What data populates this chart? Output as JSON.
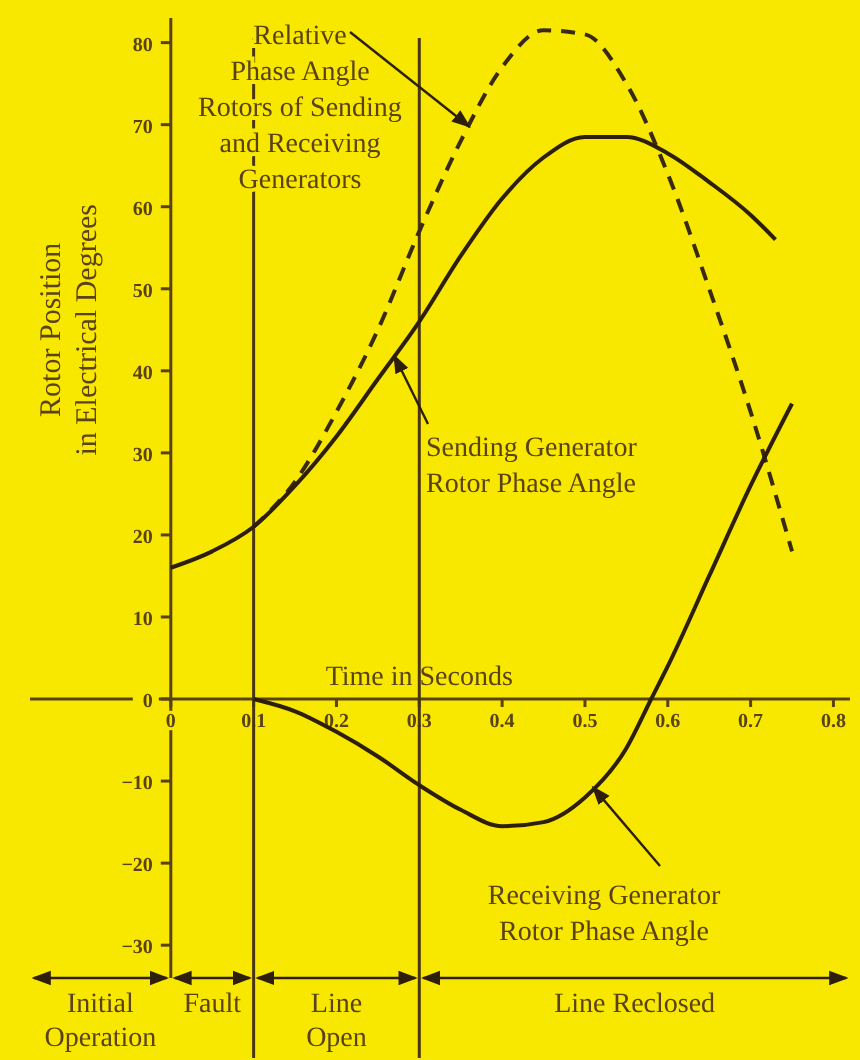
{
  "chart_data": {
    "type": "line",
    "ylabel": "Rotor Position in Electrical Degrees",
    "xlabel": "Time in Seconds",
    "xlim": [
      -0.17,
      0.82
    ],
    "ylim": [
      -34,
      83
    ],
    "xticks": [
      0,
      0.1,
      0.2,
      0.3,
      0.4,
      0.5,
      0.6,
      0.7,
      0.8
    ],
    "yticks": [
      -30,
      -20,
      -10,
      0,
      10,
      20,
      30,
      40,
      50,
      60,
      70,
      80
    ],
    "grid": false,
    "series": [
      {
        "name": "Relative Phase Angle Rotors of Sending and Receiving Generators",
        "color": "#3a2a12",
        "line_style": "dashed",
        "x": [
          0.1,
          0.15,
          0.2,
          0.25,
          0.3,
          0.35,
          0.4,
          0.45,
          0.5,
          0.55,
          0.6,
          0.65,
          0.7,
          0.75
        ],
        "values": [
          21,
          26.5,
          35,
          45,
          57,
          68,
          77,
          81.5,
          81,
          75,
          64,
          50,
          35,
          18
        ]
      },
      {
        "name": "Sending Generator Rotor Phase Angle",
        "color": "#2e1f0c",
        "line_style": "solid",
        "x": [
          0,
          0.05,
          0.1,
          0.15,
          0.2,
          0.25,
          0.3,
          0.35,
          0.4,
          0.45,
          0.5,
          0.55,
          0.6,
          0.65,
          0.7,
          0.73
        ],
        "values": [
          16,
          18,
          21,
          26,
          32,
          39,
          46,
          54,
          61,
          66,
          68.5,
          68.5,
          66.5,
          63,
          59,
          56
        ]
      },
      {
        "name": "Receiving Generator Rotor Phase Angle",
        "color": "#2e1f0c",
        "line_style": "solid",
        "x": [
          0.1,
          0.15,
          0.2,
          0.25,
          0.3,
          0.35,
          0.4,
          0.45,
          0.5,
          0.55,
          0.58,
          0.6,
          0.65,
          0.7,
          0.75
        ],
        "values": [
          0,
          -1.5,
          -4,
          -7,
          -10.5,
          -13.5,
          -15.5,
          -15,
          -12,
          -6,
          0,
          4,
          15,
          26,
          36
        ]
      }
    ],
    "ref_lines": [
      {
        "axis": "x",
        "value": 0.1,
        "color": "#4a3512"
      },
      {
        "axis": "x",
        "value": 0.3,
        "color": "#4a3512"
      }
    ],
    "annotations": [
      "Initial Operation",
      "Fault",
      "Line Open",
      "Line Reclosed"
    ]
  }
}
